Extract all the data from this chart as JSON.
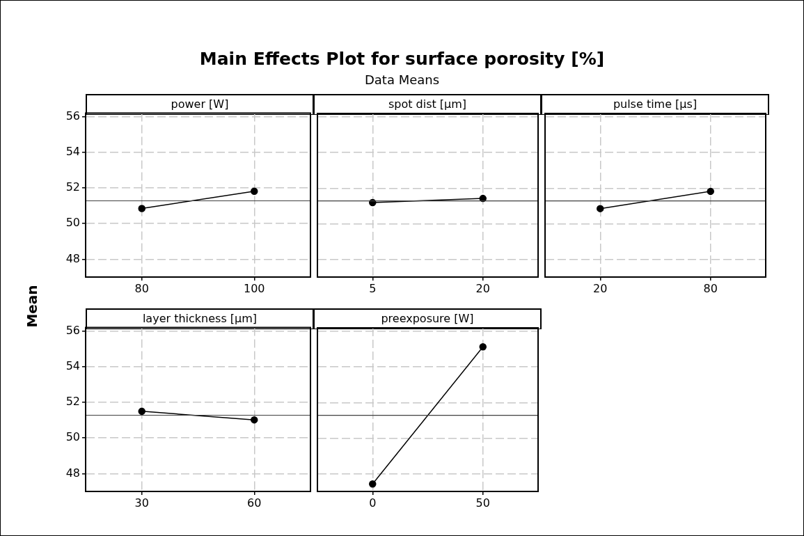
{
  "chart_data": [
    {
      "type": "other",
      "title": "Main Effects Plot for surface porosity [%]",
      "subtitle": "Data Means"
    },
    {
      "type": "line",
      "ylabel": "Mean",
      "xlabel": "power [W]",
      "x": [
        80,
        100
      ],
      "series": [
        {
          "color": "#000000",
          "values": [
            50.85,
            51.82
          ]
        }
      ],
      "xlim": [
        70,
        110
      ],
      "xticks": [
        80,
        100
      ],
      "ylim": [
        47,
        56.2
      ],
      "yticks": [
        48,
        50,
        52,
        54,
        56
      ],
      "ref_lines": [
        {
          "axis": "y",
          "value": 51.28,
          "color": "#404040"
        }
      ],
      "grid": true,
      "marker": "circle",
      "legend": false
    },
    {
      "type": "line",
      "xlabel": "spot dist [μm]",
      "x": [
        5,
        20
      ],
      "series": [
        {
          "color": "#000000",
          "values": [
            51.19,
            51.42
          ]
        }
      ],
      "xlim": [
        -2.5,
        27.5
      ],
      "xticks": [
        5,
        20
      ],
      "ylim": [
        47,
        56.2
      ],
      "yticks": [
        48,
        50,
        52,
        54,
        56
      ],
      "tick_labels": "x",
      "ref_lines": [
        {
          "axis": "y",
          "value": 51.28,
          "color": "#404040"
        }
      ],
      "grid": true,
      "marker": "circle",
      "legend": false
    },
    {
      "type": "line",
      "xlabel": "pulse time [μs]",
      "x": [
        20,
        80
      ],
      "series": [
        {
          "color": "#000000",
          "values": [
            50.85,
            51.82
          ]
        }
      ],
      "xlim": [
        -10,
        110
      ],
      "xticks": [
        20,
        80
      ],
      "ylim": [
        47,
        56.2
      ],
      "yticks": [
        48,
        50,
        52,
        54,
        56
      ],
      "tick_labels": "x",
      "ref_lines": [
        {
          "axis": "y",
          "value": 51.28,
          "color": "#404040"
        }
      ],
      "grid": true,
      "marker": "circle",
      "legend": false
    },
    {
      "type": "line",
      "xlabel": "layer thickness [μm]",
      "x": [
        30,
        60
      ],
      "series": [
        {
          "color": "#000000",
          "values": [
            51.5,
            51.02
          ]
        }
      ],
      "xlim": [
        15,
        75
      ],
      "xticks": [
        30,
        60
      ],
      "ylim": [
        47,
        56.2
      ],
      "yticks": [
        48,
        50,
        52,
        54,
        56
      ],
      "ref_lines": [
        {
          "axis": "y",
          "value": 51.28,
          "color": "#404040"
        }
      ],
      "grid": true,
      "marker": "circle",
      "legend": false
    },
    {
      "type": "line",
      "xlabel": "preexposure [W]",
      "x": [
        0,
        50
      ],
      "series": [
        {
          "color": "#000000",
          "values": [
            47.42,
            55.13
          ]
        }
      ],
      "xlim": [
        -25,
        75
      ],
      "xticks": [
        0,
        50
      ],
      "ylim": [
        47,
        56.2
      ],
      "yticks": [
        48,
        50,
        52,
        54,
        56
      ],
      "tick_labels": "x",
      "ref_lines": [
        {
          "axis": "y",
          "value": 51.28,
          "color": "#404040"
        }
      ],
      "grid": true,
      "marker": "circle",
      "legend": false
    }
  ]
}
